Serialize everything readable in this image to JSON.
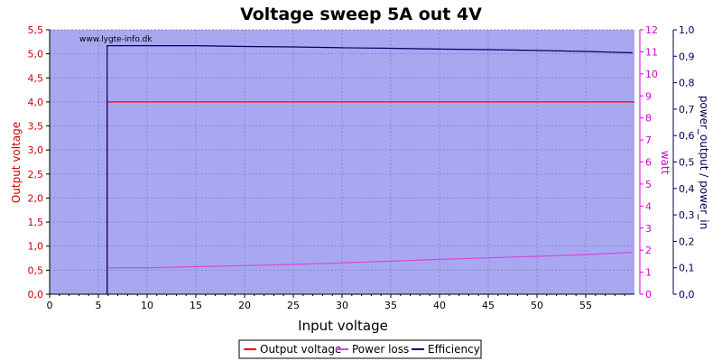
{
  "chart_data": {
    "type": "line",
    "title": "Voltage sweep 5A out 4V",
    "watermark": "www.lygte-info.dk",
    "xlabel": "Input voltage",
    "xlim": [
      0,
      60
    ],
    "x_ticks": [
      "0",
      "5",
      "10",
      "15",
      "20",
      "25",
      "30",
      "35",
      "40",
      "45",
      "50",
      "55"
    ],
    "y_left": {
      "label": "Output voltage",
      "color": "#cc0000",
      "lim": [
        0,
        5.5
      ],
      "ticks": [
        "0,0",
        "0,5",
        "1,0",
        "1,5",
        "2,0",
        "2,5",
        "3,0",
        "3,5",
        "4,0",
        "4,5",
        "5,0",
        "5,5"
      ]
    },
    "y_right1": {
      "label": "watt",
      "color": "#d400d4",
      "lim": [
        0,
        12
      ],
      "ticks": [
        "0",
        "1",
        "2",
        "3",
        "4",
        "5",
        "6",
        "7",
        "8",
        "9",
        "10",
        "11",
        "12"
      ]
    },
    "y_right2": {
      "label": "power_output / power_in",
      "color": "#000055",
      "lim": [
        0,
        1.0
      ],
      "ticks": [
        "0,0",
        "0,1",
        "0,2",
        "0,3",
        "0,4",
        "0,5",
        "0,6",
        "0,7",
        "0,8",
        "0,9",
        "1,0"
      ]
    },
    "plot_background": "#a8a8f0",
    "grid": true,
    "legend_position": "bottom-center",
    "series": [
      {
        "name": "Output voltage",
        "axis": "y_left",
        "color": "#ff0000",
        "x": [
          5.9,
          5.9,
          60
        ],
        "y": [
          0.0,
          4.0,
          4.0
        ]
      },
      {
        "name": "Power loss",
        "axis": "y_right1",
        "color": "#dd44dd",
        "x": [
          5.9,
          5.9,
          10,
          15,
          20,
          25,
          30,
          35,
          40,
          45,
          50,
          55,
          59.8
        ],
        "y": [
          0.2,
          1.2,
          1.2,
          1.25,
          1.3,
          1.35,
          1.42,
          1.5,
          1.58,
          1.65,
          1.72,
          1.8,
          1.9
        ]
      },
      {
        "name": "Efficiency",
        "axis": "y_right2",
        "color": "#000066",
        "x": [
          5.9,
          5.9,
          10,
          15,
          20,
          25,
          30,
          35,
          40,
          45,
          50,
          55,
          59.8
        ],
        "y": [
          0.0,
          0.94,
          0.94,
          0.94,
          0.937,
          0.935,
          0.932,
          0.93,
          0.927,
          0.925,
          0.922,
          0.918,
          0.913
        ]
      }
    ]
  }
}
